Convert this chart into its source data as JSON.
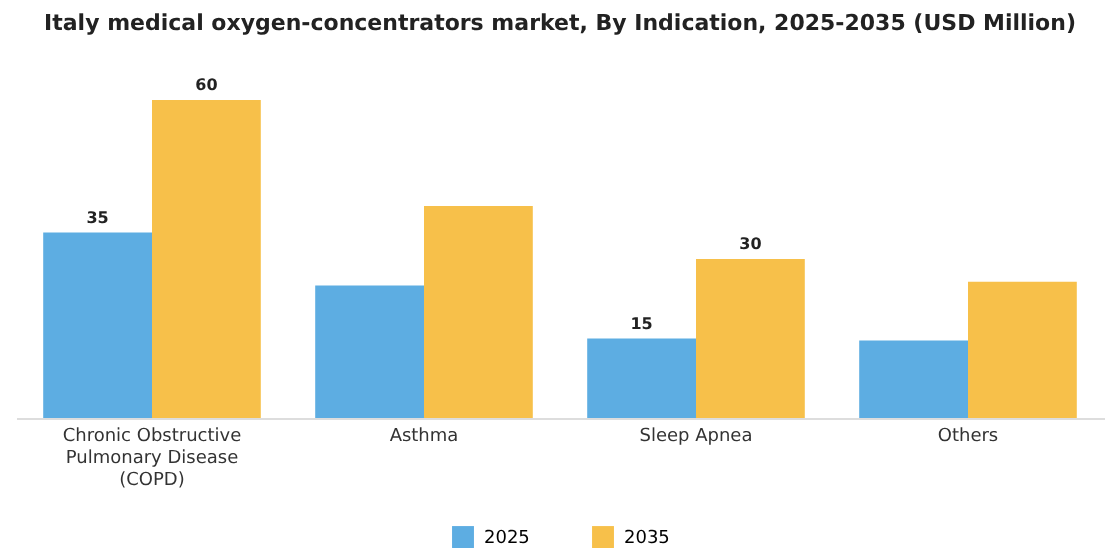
{
  "chart_data": {
    "type": "bar",
    "title": "Italy medical oxygen-concentrators market, By Indication, 2025-2035 (USD Million)",
    "categories": [
      "Chronic Obstructive Pulmonary Disease (COPD)",
      "Asthma",
      "Sleep Apnea",
      "Others"
    ],
    "series": [
      {
        "name": "2025",
        "color": "#5dade2",
        "values": [
          35,
          25,
          15,
          14.6
        ],
        "value_labels": [
          "35",
          null,
          "15",
          null
        ]
      },
      {
        "name": "2035",
        "color": "#f7c04a",
        "values": [
          60,
          40,
          30,
          25.7
        ],
        "value_labels": [
          "60",
          null,
          "30",
          null
        ]
      }
    ],
    "legend": "bottom"
  }
}
